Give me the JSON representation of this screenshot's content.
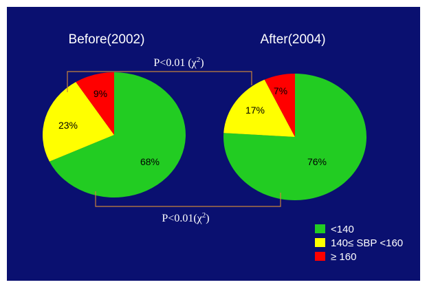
{
  "chart_data": {
    "type": "pie",
    "charts": [
      {
        "title": "Before(2002)",
        "values": [
          68,
          23,
          9
        ],
        "labels": [
          "68%",
          "23%",
          "9%"
        ]
      },
      {
        "title": "After(2004)",
        "values": [
          76,
          17,
          7
        ],
        "labels": [
          "76%",
          "17%",
          "7%"
        ]
      }
    ],
    "legend": [
      {
        "label": "<140",
        "color": "#22cc22"
      },
      {
        "label": "140≤ SBP <160",
        "color": "#ffff00"
      },
      {
        "label": "≥ 160",
        "color": "#ff0000"
      }
    ],
    "annotations": {
      "top": {
        "prefix": "P<0.01 (χ",
        "sup": "2",
        "suffix": ")"
      },
      "bottom": {
        "prefix": "P<0.01(χ",
        "sup": "2",
        "suffix": ")"
      }
    }
  },
  "colors": {
    "background": "#0a1070",
    "bracket": "#c8823c"
  }
}
